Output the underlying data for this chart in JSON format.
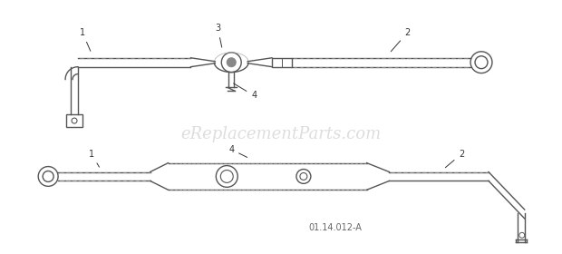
{
  "bg_color": "#ffffff",
  "watermark_text": "eReplacementParts.com",
  "watermark_color": "#cccccc",
  "watermark_alpha": 0.65,
  "diagram_code": "01.14.012-A",
  "line_color": "#555555",
  "line_width": 1.0,
  "label_fontsize": 7,
  "label_color": "#333333",
  "diagram_code_fontsize": 7,
  "diagram_code_color": "#666666"
}
